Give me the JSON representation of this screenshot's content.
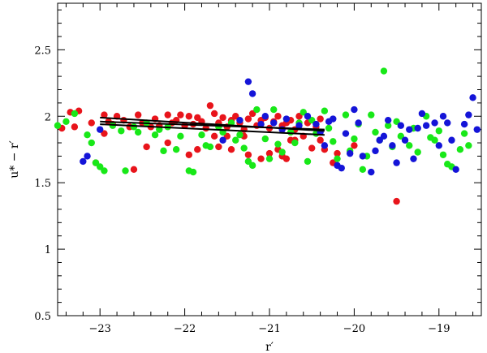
{
  "chart_data": {
    "type": "scatter",
    "title": "",
    "xlabel": "r′",
    "ylabel": "u* − r′",
    "xlim": [
      -23.5,
      -18.5
    ],
    "ylim": [
      0.5,
      2.85
    ],
    "x_ticks": [
      -23,
      -22,
      -21,
      -20,
      -19
    ],
    "x_tick_labels": [
      "−23",
      "−22",
      "−21",
      "−20",
      "−19"
    ],
    "y_ticks": [
      0.5,
      1,
      1.5,
      2,
      2.5
    ],
    "y_tick_labels": [
      "0.5",
      "1",
      "1.5",
      "2",
      "2.5"
    ],
    "grid": false,
    "series": [
      {
        "color": "#e8141b",
        "points": [
          [
            -23.45,
            1.91
          ],
          [
            -23.35,
            2.03
          ],
          [
            -23.3,
            1.92
          ],
          [
            -23.25,
            2.04
          ],
          [
            -23.1,
            1.95
          ],
          [
            -22.95,
            2.01
          ],
          [
            -22.9,
            1.96
          ],
          [
            -22.85,
            1.94
          ],
          [
            -22.8,
            2.0
          ],
          [
            -22.72,
            1.97
          ],
          [
            -22.65,
            1.92
          ],
          [
            -22.55,
            2.01
          ],
          [
            -22.5,
            1.95
          ],
          [
            -22.4,
            1.92
          ],
          [
            -22.35,
            1.98
          ],
          [
            -22.3,
            1.93
          ],
          [
            -22.2,
            2.01
          ],
          [
            -22.15,
            1.95
          ],
          [
            -22.1,
            1.97
          ],
          [
            -22.05,
            2.01
          ],
          [
            -22.0,
            1.93
          ],
          [
            -21.95,
            2.0
          ],
          [
            -21.9,
            1.94
          ],
          [
            -21.85,
            1.99
          ],
          [
            -21.8,
            1.96
          ],
          [
            -21.75,
            1.91
          ],
          [
            -21.7,
            2.08
          ],
          [
            -21.65,
            2.02
          ],
          [
            -21.6,
            1.95
          ],
          [
            -21.55,
            1.99
          ],
          [
            -21.5,
            1.92
          ],
          [
            -21.45,
            1.97
          ],
          [
            -21.4,
            2.0
          ],
          [
            -21.35,
            1.95
          ],
          [
            -21.3,
            1.9
          ],
          [
            -21.25,
            1.98
          ],
          [
            -21.2,
            2.02
          ],
          [
            -21.15,
            1.93
          ],
          [
            -21.1,
            1.97
          ],
          [
            -21.05,
            1.99
          ],
          [
            -21.0,
            1.91
          ],
          [
            -20.95,
            1.96
          ],
          [
            -20.9,
            2.0
          ],
          [
            -20.85,
            1.93
          ],
          [
            -20.8,
            1.95
          ],
          [
            -20.75,
            1.97
          ],
          [
            -20.7,
            1.9
          ],
          [
            -20.65,
            2.0
          ],
          [
            -20.55,
            1.95
          ],
          [
            -20.45,
            1.92
          ],
          [
            -20.4,
            1.98
          ],
          [
            -22.95,
            1.87
          ],
          [
            -22.45,
            1.77
          ],
          [
            -22.2,
            1.8
          ],
          [
            -21.95,
            1.71
          ],
          [
            -21.85,
            1.75
          ],
          [
            -21.65,
            1.85
          ],
          [
            -21.6,
            1.77
          ],
          [
            -21.5,
            1.85
          ],
          [
            -21.45,
            1.75
          ],
          [
            -21.3,
            1.85
          ],
          [
            -21.25,
            1.71
          ],
          [
            -21.1,
            1.68
          ],
          [
            -21.0,
            1.72
          ],
          [
            -20.9,
            1.75
          ],
          [
            -20.85,
            1.7
          ],
          [
            -20.8,
            1.68
          ],
          [
            -20.75,
            1.82
          ],
          [
            -20.7,
            1.82
          ],
          [
            -20.6,
            1.85
          ],
          [
            -20.5,
            1.76
          ],
          [
            -20.4,
            1.82
          ],
          [
            -20.35,
            1.75
          ],
          [
            -20.2,
            1.72
          ],
          [
            -20.0,
            1.78
          ],
          [
            -23.05,
            1.65
          ],
          [
            -22.6,
            1.6
          ],
          [
            -19.5,
            1.36
          ],
          [
            -20.25,
            1.65
          ]
        ]
      },
      {
        "color": "#18e818",
        "points": [
          [
            -23.5,
            1.93
          ],
          [
            -23.4,
            1.96
          ],
          [
            -23.3,
            2.02
          ],
          [
            -23.15,
            1.86
          ],
          [
            -23.1,
            1.8
          ],
          [
            -23.05,
            1.65
          ],
          [
            -23.0,
            1.62
          ],
          [
            -22.95,
            1.59
          ],
          [
            -22.85,
            1.93
          ],
          [
            -22.75,
            1.89
          ],
          [
            -22.7,
            1.59
          ],
          [
            -22.6,
            1.92
          ],
          [
            -22.55,
            1.88
          ],
          [
            -22.45,
            1.95
          ],
          [
            -22.35,
            1.86
          ],
          [
            -22.3,
            1.9
          ],
          [
            -22.2,
            1.92
          ],
          [
            -22.1,
            1.75
          ],
          [
            -22.05,
            1.85
          ],
          [
            -21.95,
            1.59
          ],
          [
            -21.9,
            1.58
          ],
          [
            -21.8,
            1.86
          ],
          [
            -21.75,
            1.78
          ],
          [
            -21.7,
            1.77
          ],
          [
            -21.6,
            1.92
          ],
          [
            -21.55,
            1.88
          ],
          [
            -21.45,
            1.95
          ],
          [
            -21.35,
            1.86
          ],
          [
            -21.3,
            1.76
          ],
          [
            -21.25,
            1.66
          ],
          [
            -21.2,
            1.63
          ],
          [
            -21.15,
            2.05
          ],
          [
            -21.05,
            1.83
          ],
          [
            -21.0,
            1.68
          ],
          [
            -20.95,
            2.05
          ],
          [
            -20.9,
            1.79
          ],
          [
            -20.85,
            1.73
          ],
          [
            -20.75,
            1.88
          ],
          [
            -20.7,
            1.8
          ],
          [
            -20.65,
            1.95
          ],
          [
            -20.6,
            2.03
          ],
          [
            -20.5,
            1.97
          ],
          [
            -20.45,
            1.87
          ],
          [
            -20.35,
            2.04
          ],
          [
            -20.3,
            1.91
          ],
          [
            -20.25,
            1.81
          ],
          [
            -20.2,
            1.68
          ],
          [
            -20.1,
            2.01
          ],
          [
            -20.05,
            1.74
          ],
          [
            -20.0,
            1.83
          ],
          [
            -19.95,
            1.94
          ],
          [
            -19.9,
            1.6
          ],
          [
            -19.85,
            1.7
          ],
          [
            -19.8,
            2.01
          ],
          [
            -19.75,
            1.88
          ],
          [
            -19.7,
            1.82
          ],
          [
            -19.65,
            2.34
          ],
          [
            -19.6,
            1.93
          ],
          [
            -19.55,
            1.77
          ],
          [
            -19.5,
            1.96
          ],
          [
            -19.45,
            1.85
          ],
          [
            -19.35,
            1.78
          ],
          [
            -19.3,
            1.91
          ],
          [
            -19.25,
            1.73
          ],
          [
            -19.15,
            2.0
          ],
          [
            -19.1,
            1.84
          ],
          [
            -19.05,
            1.82
          ],
          [
            -19.0,
            1.89
          ],
          [
            -18.95,
            1.71
          ],
          [
            -18.9,
            1.64
          ],
          [
            -18.85,
            1.62
          ],
          [
            -18.75,
            1.75
          ],
          [
            -18.7,
            1.87
          ],
          [
            -18.65,
            1.78
          ],
          [
            -21.4,
            1.82
          ],
          [
            -22.25,
            1.74
          ],
          [
            -20.55,
            1.66
          ]
        ]
      },
      {
        "color": "#1414d8",
        "points": [
          [
            -23.2,
            1.66
          ],
          [
            -23.15,
            1.7
          ],
          [
            -23.0,
            1.9
          ],
          [
            -21.55,
            1.82
          ],
          [
            -21.35,
            1.97
          ],
          [
            -21.25,
            2.26
          ],
          [
            -21.2,
            2.17
          ],
          [
            -21.1,
            1.94
          ],
          [
            -21.05,
            2.0
          ],
          [
            -20.95,
            1.95
          ],
          [
            -20.85,
            1.9
          ],
          [
            -20.8,
            1.98
          ],
          [
            -20.65,
            1.93
          ],
          [
            -20.55,
            2.0
          ],
          [
            -20.45,
            1.94
          ],
          [
            -20.4,
            1.88
          ],
          [
            -20.3,
            1.96
          ],
          [
            -20.25,
            1.98
          ],
          [
            -20.2,
            1.63
          ],
          [
            -20.15,
            1.61
          ],
          [
            -20.1,
            1.87
          ],
          [
            -20.0,
            2.05
          ],
          [
            -19.95,
            1.95
          ],
          [
            -19.9,
            1.7
          ],
          [
            -19.8,
            1.58
          ],
          [
            -19.75,
            1.74
          ],
          [
            -19.7,
            1.82
          ],
          [
            -19.6,
            1.97
          ],
          [
            -19.55,
            1.78
          ],
          [
            -19.5,
            1.65
          ],
          [
            -19.45,
            1.93
          ],
          [
            -19.4,
            1.82
          ],
          [
            -19.35,
            1.9
          ],
          [
            -19.25,
            1.91
          ],
          [
            -19.2,
            2.02
          ],
          [
            -19.15,
            1.93
          ],
          [
            -19.05,
            1.95
          ],
          [
            -19.0,
            1.78
          ],
          [
            -18.95,
            2.0
          ],
          [
            -18.9,
            1.95
          ],
          [
            -18.85,
            1.82
          ],
          [
            -18.8,
            1.6
          ],
          [
            -18.7,
            1.94
          ],
          [
            -18.65,
            2.01
          ],
          [
            -18.6,
            2.14
          ],
          [
            -18.55,
            1.9
          ],
          [
            -19.3,
            1.68
          ],
          [
            -20.05,
            1.72
          ],
          [
            -20.35,
            1.78
          ],
          [
            -19.65,
            1.85
          ]
        ]
      }
    ],
    "lines": [
      {
        "color": "#000000",
        "points": [
          [
            -23.0,
            1.99
          ],
          [
            -20.35,
            1.89
          ]
        ]
      },
      {
        "color": "#000000",
        "points": [
          [
            -23.0,
            1.96
          ],
          [
            -20.35,
            1.9
          ]
        ]
      },
      {
        "color": "#000000",
        "points": [
          [
            -23.0,
            1.94
          ],
          [
            -20.35,
            1.86
          ]
        ]
      }
    ]
  }
}
